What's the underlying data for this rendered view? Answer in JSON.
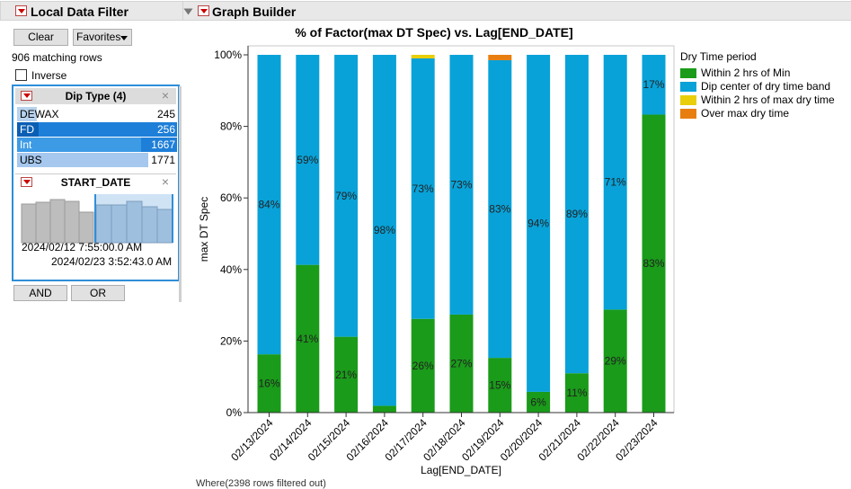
{
  "filter_panel": {
    "title": "Local Data Filter",
    "clear_label": "Clear",
    "favorites_label": "Favorites",
    "matching_rows": "906 matching rows",
    "inverse_label": "Inverse",
    "dip_type": {
      "title": "Dip Type (4)",
      "items": [
        {
          "label": "DEWAX",
          "count": "245",
          "selected": false
        },
        {
          "label": "FD",
          "count": "256",
          "selected": true
        },
        {
          "label": "Int",
          "count": "1667",
          "selected": true
        },
        {
          "label": "UBS",
          "count": "1771",
          "selected": false
        }
      ]
    },
    "start_date": {
      "title": "START_DATE",
      "from": "2024/02/12 7:55:00.0 AM",
      "to": "2024/02/23 3:52:43.0 AM"
    },
    "and_label": "AND",
    "or_label": "OR"
  },
  "graph_builder": {
    "title": "Graph Builder",
    "footer_text": "Where(2398 rows filtered out)"
  },
  "legend": {
    "title": "Dry Time period",
    "items": [
      {
        "label": "Within 2 hrs of Min",
        "color": "#1a9b1a"
      },
      {
        "label": "Dip center of dry time band",
        "color": "#08a2d8"
      },
      {
        "label": "Within 2 hrs of max dry time",
        "color": "#e8cf0a"
      },
      {
        "label": "Over max dry time",
        "color": "#e87e10"
      }
    ]
  },
  "chart_data": {
    "type": "bar",
    "stacked": true,
    "title": "% of Factor(max DT Spec) vs. Lag[END_DATE]",
    "xlabel": "Lag[END_DATE]",
    "ylabel": "max DT Spec",
    "ylim": [
      0,
      100
    ],
    "yticks": [
      "0%",
      "20%",
      "40%",
      "60%",
      "80%",
      "100%"
    ],
    "categories": [
      "02/13/2024",
      "02/14/2024",
      "02/15/2024",
      "02/16/2024",
      "02/17/2024",
      "02/18/2024",
      "02/19/2024",
      "02/20/2024",
      "02/21/2024",
      "02/22/2024",
      "02/23/2024"
    ],
    "series": [
      {
        "name": "Within 2 hrs of Min",
        "color": "#1a9b1a",
        "values": [
          16.3,
          41.3,
          21.2,
          1.9,
          26.2,
          27.4,
          15.3,
          5.8,
          11.0,
          28.8,
          83.3
        ],
        "labels": [
          "16%",
          "41%",
          "21%",
          "",
          "26%",
          "27%",
          "15%",
          "6%",
          "11%",
          "29%",
          "83%"
        ]
      },
      {
        "name": "Dip center of dry time band",
        "color": "#08a2d8",
        "values": [
          83.7,
          58.7,
          78.8,
          98.1,
          72.8,
          72.6,
          83.2,
          94.2,
          89.0,
          71.2,
          16.7
        ],
        "labels": [
          "84%",
          "59%",
          "79%",
          "98%",
          "73%",
          "73%",
          "83%",
          "94%",
          "89%",
          "71%",
          "17%"
        ]
      },
      {
        "name": "Within 2 hrs of max dry time",
        "color": "#e8cf0a",
        "values": [
          0,
          0,
          0,
          0,
          1.0,
          0,
          0,
          0,
          0,
          0,
          0
        ],
        "labels": [
          "",
          "",
          "",
          "",
          "",
          "",
          "",
          "",
          "",
          "",
          ""
        ]
      },
      {
        "name": "Over max dry time",
        "color": "#e87e10",
        "values": [
          0,
          0,
          0,
          0,
          0,
          0,
          1.5,
          0,
          0,
          0,
          0
        ],
        "labels": [
          "",
          "",
          "",
          "",
          "",
          "",
          "",
          "",
          "",
          "",
          ""
        ]
      }
    ]
  }
}
